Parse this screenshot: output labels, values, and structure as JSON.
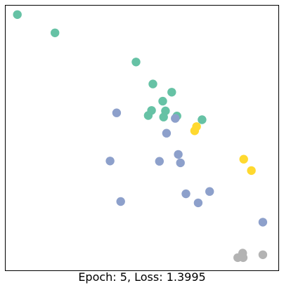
{
  "caption": "Epoch: 5, Loss: 1.3995",
  "colors": {
    "green": "#66c2a5",
    "blue": "#8da0cb",
    "yellow": "#ffd92f",
    "gray": "#b3b3b3"
  },
  "chart_data": {
    "type": "scatter",
    "title": "",
    "xlabel": "",
    "ylabel": "",
    "grid": false,
    "xticks": [],
    "yticks": [],
    "xlim": [
      0,
      100
    ],
    "ylim": [
      0,
      100
    ],
    "series": [
      {
        "color": "#66c2a5",
        "x": [
          4.3,
          18.1,
          47.8,
          54.0,
          60.9,
          57.6,
          53.5,
          58.6,
          52.3,
          57.9,
          62.8,
          72.0
        ],
        "y": [
          96.6,
          89.7,
          78.7,
          70.4,
          67.3,
          63.9,
          60.4,
          60.2,
          58.5,
          57.9,
          58.3,
          56.9
        ]
      },
      {
        "color": "#8da0cb",
        "x": [
          40.7,
          62.2,
          59.0,
          63.3,
          38.3,
          56.4,
          64.1,
          42.2,
          66.1,
          74.8,
          70.6,
          94.3
        ],
        "y": [
          59.5,
          57.4,
          51.8,
          43.8,
          41.3,
          41.2,
          40.6,
          26.0,
          28.9,
          29.8,
          25.5,
          18.2
        ]
      },
      {
        "color": "#ffd92f",
        "x": [
          70.0,
          69.3,
          87.3,
          90.1
        ],
        "y": [
          54.3,
          52.7,
          42.0,
          37.7
        ]
      },
      {
        "color": "#b3b3b3",
        "x": [
          86.9,
          85.1,
          87.1,
          94.3
        ],
        "y": [
          6.5,
          4.8,
          4.8,
          5.9
        ]
      }
    ]
  }
}
